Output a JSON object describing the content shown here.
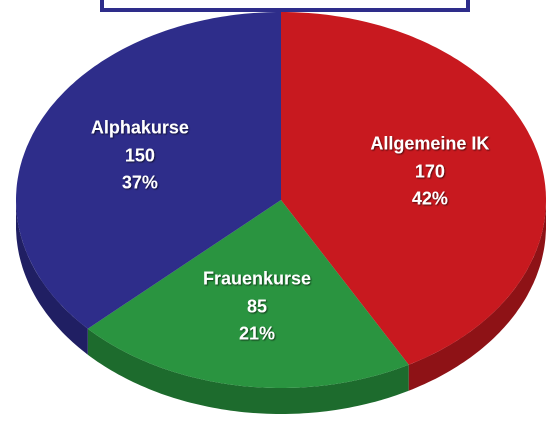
{
  "chart_data": {
    "type": "pie",
    "categories": [
      "Allgemeine IK",
      "Frauenkurse",
      "Alphakurse"
    ],
    "counts": [
      170,
      85,
      150
    ],
    "values": [
      42,
      21,
      37
    ],
    "value_labels": [
      "42%",
      "21%",
      "37%"
    ],
    "colors": [
      "#c8191f",
      "#2a9440",
      "#2e2d8a"
    ],
    "side_colors": [
      "#8e1216",
      "#1d6b2d",
      "#201f63"
    ]
  }
}
